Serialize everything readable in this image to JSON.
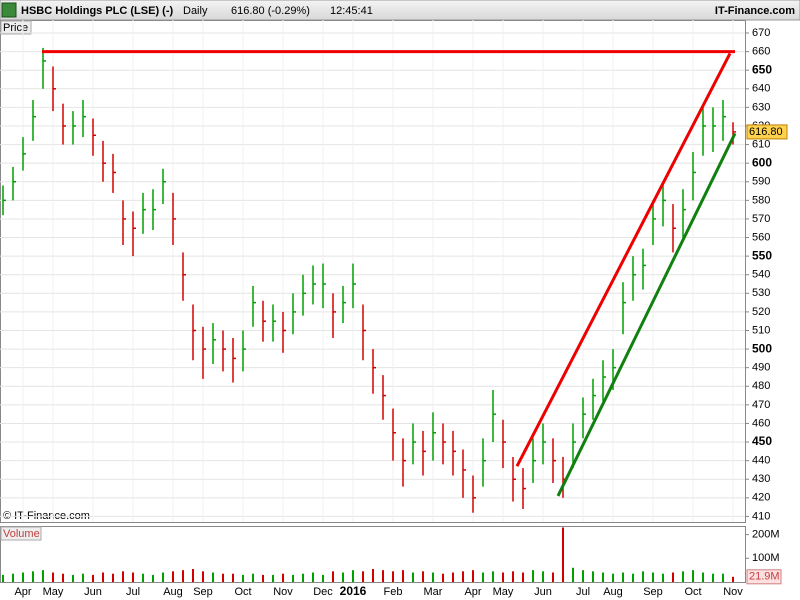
{
  "header": {
    "symbol": "HSBC Holdings PLC (LSE) (-)",
    "period": "Daily",
    "quote": "616.80 (-0.29%)",
    "time": "12:45:41",
    "site": "IT-Finance.com"
  },
  "chart_data": {
    "type": "ohlc",
    "price_label": "Price",
    "volume_label": "Volume",
    "copyright": "© IT-Finance.com",
    "categories": [
      null,
      null,
      "Apr",
      null,
      null,
      "May",
      null,
      null,
      null,
      "Jun",
      null,
      null,
      null,
      "Jul",
      null,
      null,
      null,
      "Aug",
      null,
      null,
      "Sep",
      null,
      null,
      null,
      "Oct",
      null,
      null,
      null,
      "Nov",
      null,
      null,
      null,
      "Dec",
      null,
      null,
      "2016",
      null,
      null,
      null,
      "Feb",
      null,
      null,
      null,
      "Mar",
      null,
      null,
      null,
      "Apr",
      null,
      null,
      "May",
      null,
      null,
      null,
      "Jun",
      null,
      null,
      null,
      "Jul",
      null,
      null,
      "Aug",
      null,
      null,
      null,
      "Sep",
      null,
      null,
      null,
      "Oct",
      null,
      null,
      null,
      "Nov"
    ],
    "high": [
      588,
      598,
      614,
      634,
      662,
      652,
      632,
      628,
      634,
      624,
      612,
      605,
      580,
      574,
      584,
      586,
      597,
      584,
      552,
      524,
      512,
      514,
      510,
      506,
      510,
      534,
      526,
      524,
      520,
      530,
      540,
      545,
      546,
      530,
      534,
      546,
      524,
      500,
      486,
      468,
      452,
      460,
      456,
      466,
      460,
      456,
      446,
      432,
      452,
      478,
      462,
      442,
      436,
      452,
      460,
      452,
      442,
      460,
      474,
      484,
      494,
      500,
      536,
      550,
      554,
      580,
      590,
      578,
      586,
      606,
      630,
      630,
      634,
      622
    ],
    "low": [
      572,
      580,
      596,
      612,
      640,
      628,
      610,
      610,
      614,
      604,
      590,
      584,
      556,
      550,
      562,
      564,
      578,
      556,
      526,
      494,
      484,
      492,
      488,
      482,
      488,
      512,
      504,
      504,
      498,
      508,
      518,
      524,
      522,
      506,
      514,
      522,
      494,
      476,
      462,
      440,
      426,
      438,
      432,
      440,
      438,
      432,
      420,
      412,
      426,
      450,
      436,
      418,
      414,
      428,
      438,
      428,
      420,
      436,
      452,
      462,
      472,
      478,
      508,
      526,
      532,
      556,
      566,
      552,
      560,
      580,
      604,
      606,
      612,
      610
    ],
    "close": [
      580,
      590,
      605,
      625,
      655,
      640,
      620,
      620,
      625,
      615,
      600,
      595,
      570,
      565,
      575,
      575,
      590,
      570,
      540,
      510,
      500,
      505,
      500,
      495,
      500,
      525,
      515,
      515,
      510,
      520,
      530,
      535,
      535,
      520,
      525,
      535,
      510,
      490,
      475,
      455,
      440,
      450,
      445,
      455,
      450,
      445,
      435,
      420,
      440,
      465,
      450,
      430,
      425,
      440,
      450,
      440,
      430,
      450,
      465,
      475,
      485,
      490,
      525,
      540,
      545,
      570,
      580,
      565,
      575,
      595,
      620,
      620,
      625,
      616.8
    ],
    "volume": [
      30,
      35,
      40,
      45,
      50,
      40,
      35,
      30,
      35,
      30,
      40,
      35,
      45,
      40,
      35,
      30,
      40,
      45,
      50,
      55,
      45,
      40,
      35,
      35,
      30,
      35,
      30,
      30,
      35,
      30,
      35,
      40,
      30,
      45,
      40,
      50,
      45,
      55,
      50,
      45,
      50,
      40,
      45,
      40,
      35,
      40,
      45,
      50,
      40,
      45,
      40,
      45,
      40,
      50,
      45,
      40,
      230,
      60,
      50,
      45,
      40,
      35,
      40,
      35,
      45,
      40,
      35,
      40,
      45,
      50,
      40,
      35,
      35,
      21.9
    ],
    "up_color": "#00a000",
    "down_color": "#d40000",
    "ylim": [
      407,
      677
    ],
    "yticks": [
      410,
      420,
      430,
      440,
      450,
      460,
      470,
      480,
      490,
      500,
      510,
      520,
      530,
      540,
      550,
      560,
      570,
      580,
      590,
      600,
      610,
      620,
      630,
      640,
      650,
      660,
      670
    ],
    "vol_ylim": [
      0,
      232
    ],
    "vol_ticks": [
      {
        "value": 100,
        "label": "100M"
      },
      {
        "value": 200,
        "label": "200M"
      }
    ],
    "last_price": {
      "value": 616.8,
      "label": "616.80"
    },
    "last_volume": {
      "value": 21.9,
      "label": "21.9M"
    },
    "trendlines": [
      {
        "color": "#ee0000",
        "x": [
          3.9,
          73.2
        ],
        "y": [
          660,
          660
        ]
      },
      {
        "color": "#ee0000",
        "x": [
          51.4,
          72.7
        ],
        "y": [
          437,
          659
        ]
      },
      {
        "color": "#108010",
        "x": [
          55.5,
          73.2
        ],
        "y": [
          421,
          616
        ]
      }
    ]
  }
}
